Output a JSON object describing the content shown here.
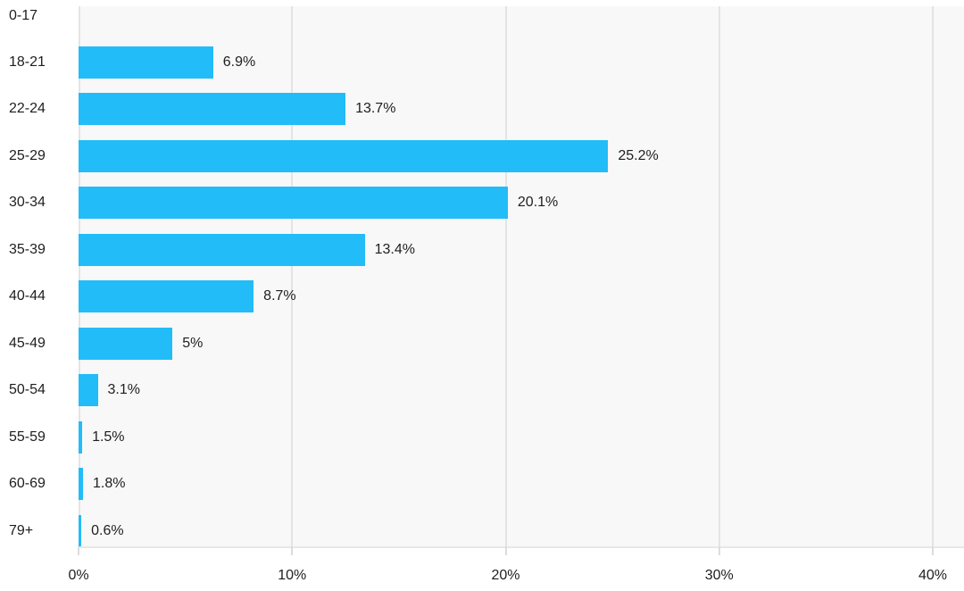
{
  "chart_data": {
    "type": "bar",
    "orientation": "horizontal",
    "title": "",
    "xlabel": "",
    "ylabel": "",
    "categories": [
      "0-17",
      "18-21",
      "22-24",
      "25-29",
      "30-34",
      "35-39",
      "40-44",
      "45-49",
      "50-54",
      "55-59",
      "60-69",
      "79+"
    ],
    "values": [
      0,
      6.9,
      13.7,
      25.2,
      20.1,
      13.4,
      8.7,
      5,
      3.1,
      1.5,
      1.8,
      0.6
    ],
    "value_labels": [
      "",
      "6.9%",
      "13.7%",
      "25.2%",
      "20.1%",
      "13.4%",
      "8.7%",
      "5%",
      "3.1%",
      "1.5%",
      "1.8%",
      "0.6%"
    ],
    "bar_visual_pct": [
      0,
      6.3,
      12.5,
      24.8,
      20.1,
      13.4,
      8.2,
      4.4,
      0.9,
      0.17,
      0.21,
      0.13
    ],
    "x_ticks": [
      {
        "value": 0,
        "label": "0%"
      },
      {
        "value": 10,
        "label": "10%"
      },
      {
        "value": 20,
        "label": "20%"
      },
      {
        "value": 30,
        "label": "30%"
      },
      {
        "value": 40,
        "label": "40%"
      }
    ],
    "xlim": [
      0,
      41.5
    ],
    "grid": "vertical",
    "legend": "none",
    "colors": {
      "bar": "#22bcf8",
      "plot_background": "#f8f8f8",
      "gridline": "#e4e4e4",
      "axis_line": "#e8e8e8",
      "tick": "#dcdcdc",
      "text": "#1e1e1e",
      "page_background": "#ffffff"
    }
  }
}
